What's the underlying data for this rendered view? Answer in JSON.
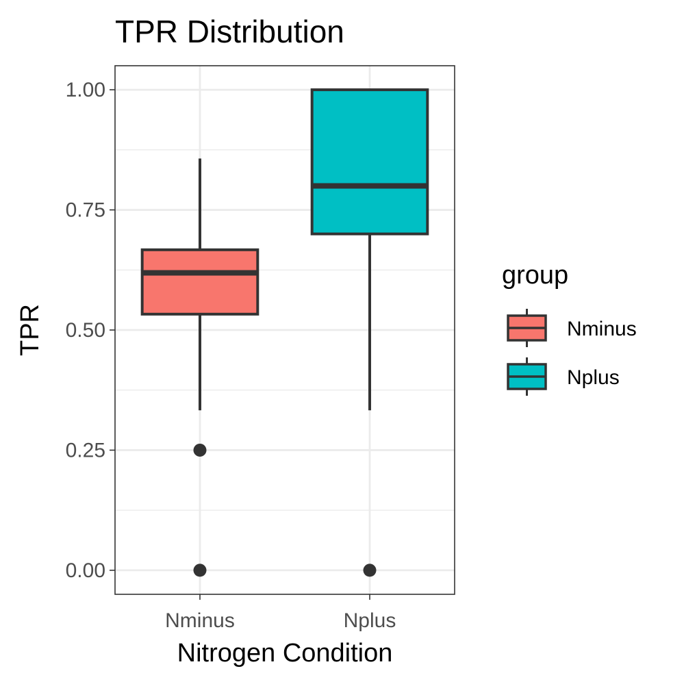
{
  "chart_data": {
    "type": "box",
    "title": "TPR Distribution",
    "xlabel": "Nitrogen Condition",
    "ylabel": "TPR",
    "categories": [
      "Nminus",
      "Nplus"
    ],
    "ylim": [
      -0.05,
      1.05
    ],
    "yticks": [
      0.0,
      0.25,
      0.5,
      0.75,
      1.0
    ],
    "ytick_labels": [
      "0.00",
      "0.25",
      "0.50",
      "0.75",
      "1.00"
    ],
    "grid": true,
    "legend": {
      "title": "group",
      "position": "right",
      "entries": [
        "Nminus",
        "Nplus"
      ]
    },
    "series": [
      {
        "category": "Nminus",
        "color": "#F8766D",
        "whisker_low": 0.333,
        "q1": 0.533,
        "median": 0.619,
        "q3": 0.667,
        "whisker_high": 0.857,
        "outliers": [
          0.25,
          0.0
        ]
      },
      {
        "category": "Nplus",
        "color": "#00BFC4",
        "whisker_low": 0.333,
        "q1": 0.7,
        "median": 0.8,
        "q3": 1.0,
        "whisker_high": 1.0,
        "outliers": [
          0.0
        ]
      }
    ]
  }
}
